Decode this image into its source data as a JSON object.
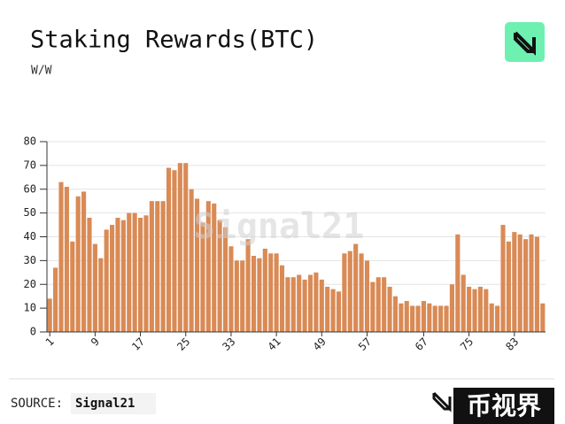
{
  "chart_data": {
    "type": "bar",
    "title": "Staking Rewards(BTC)",
    "subtitle": "W/W",
    "categories": [
      "1",
      null,
      null,
      null,
      null,
      null,
      null,
      null,
      "9",
      null,
      null,
      null,
      null,
      null,
      null,
      null,
      "17",
      null,
      null,
      null,
      null,
      null,
      null,
      null,
      "25",
      null,
      null,
      null,
      null,
      null,
      null,
      null,
      "33",
      null,
      null,
      null,
      null,
      null,
      null,
      null,
      "41",
      null,
      null,
      null,
      null,
      null,
      null,
      null,
      "49",
      null,
      null,
      null,
      null,
      null,
      null,
      null,
      "57",
      null,
      null,
      null,
      null,
      null,
      null,
      null,
      null,
      null,
      "67",
      null,
      null,
      null,
      null,
      null,
      null,
      null,
      "75",
      null,
      null,
      null,
      null,
      null,
      null,
      null,
      "83",
      null,
      null,
      null,
      null,
      null
    ],
    "values": [
      14,
      27,
      63,
      61,
      38,
      57,
      59,
      48,
      37,
      31,
      43,
      45,
      48,
      47,
      50,
      50,
      48,
      49,
      55,
      55,
      55,
      69,
      68,
      71,
      71,
      60,
      56,
      46,
      55,
      54,
      47,
      44,
      36,
      30,
      30,
      39,
      32,
      31,
      35,
      33,
      33,
      28,
      23,
      23,
      24,
      22,
      24,
      25,
      22,
      19,
      18,
      17,
      33,
      34,
      37,
      33,
      30,
      21,
      23,
      23,
      19,
      15,
      12,
      13,
      11,
      11,
      13,
      12,
      11,
      11,
      11,
      20,
      41,
      24,
      19,
      18,
      19,
      18,
      12,
      11,
      45,
      38,
      42,
      41,
      39,
      41,
      40,
      12
    ],
    "color": "#d98a55",
    "ylim": [
      0,
      80
    ],
    "yticks": [
      0,
      10,
      20,
      30,
      40,
      50,
      60,
      70,
      80
    ],
    "grid": true
  },
  "watermark": "Signal21",
  "source_label": "SOURCE:",
  "source": "Signal21",
  "brand": "币视界"
}
